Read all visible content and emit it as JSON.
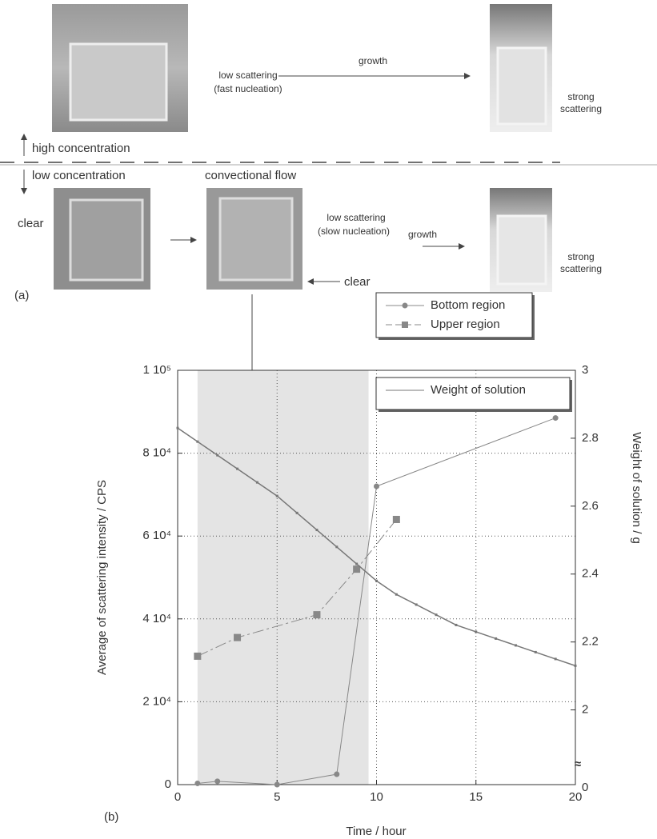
{
  "panel_a": {
    "label": "(a)",
    "high_label": "high concentration",
    "low_label": "low concentration",
    "top_left_note": [
      "low scattering",
      "(fast nucleation)"
    ],
    "top_growth": "growth",
    "top_right_note": [
      "strong",
      "scattering"
    ],
    "bottom_left_note": "clear",
    "bottom_middle_title": "convectional flow",
    "bottom_middle_note": [
      "low scattering",
      "(slow nucleation)"
    ],
    "bottom_middle_clear": "clear",
    "bottom_growth": "growth",
    "bottom_right_note": [
      "strong",
      "scattering"
    ]
  },
  "chart_data": {
    "type": "line",
    "panel_label": "(b)",
    "x_label": "Time / hour",
    "y_label": "Average of scattering intensity / CPS",
    "y2_label": "Weight of solution / g",
    "xlim": [
      0,
      20
    ],
    "xticks": [
      0,
      5,
      10,
      15,
      20
    ],
    "ylim": [
      0,
      100000
    ],
    "yticks": [
      0,
      {
        "value": 20000,
        "label": "2 10⁴"
      },
      {
        "value": 40000,
        "label": "4 10⁴"
      },
      {
        "value": 60000,
        "label": "6 10⁴"
      },
      {
        "value": 80000,
        "label": "8 10⁴"
      },
      {
        "value": 100000,
        "label": "1 10⁵"
      }
    ],
    "y2lim": [
      1.78,
      3
    ],
    "y2ticks": [
      2,
      2.2,
      2.4,
      2.6,
      2.8,
      3
    ],
    "y2_break_label": "0",
    "shade_xlim": [
      1,
      9.6
    ],
    "grid": true,
    "series": [
      {
        "name": "Bottom region",
        "color": "#888888",
        "marker": "circle",
        "dash": false,
        "x": [
          1,
          2,
          5,
          8,
          10,
          19
        ],
        "values": [
          300,
          800,
          0,
          2500,
          72000,
          88500
        ]
      },
      {
        "name": "Upper region",
        "color": "#888888",
        "marker": "square",
        "dash": true,
        "x": [
          1,
          3,
          7,
          9,
          11
        ],
        "values": [
          31000,
          35500,
          41000,
          52000,
          64000
        ]
      },
      {
        "name": "Weight of solution",
        "color": "#777777",
        "marker": "none",
        "dash": false,
        "axis": "y2",
        "x": [
          0,
          1,
          2,
          3,
          4,
          5,
          6,
          7,
          8,
          9,
          10,
          11,
          12,
          13,
          14,
          15,
          16,
          17,
          18,
          19,
          20
        ],
        "values": [
          2.83,
          2.79,
          2.75,
          2.71,
          2.67,
          2.63,
          2.58,
          2.53,
          2.48,
          2.43,
          2.38,
          2.34,
          2.31,
          2.28,
          2.25,
          2.23,
          2.21,
          2.19,
          2.17,
          2.15,
          2.13
        ]
      }
    ]
  }
}
